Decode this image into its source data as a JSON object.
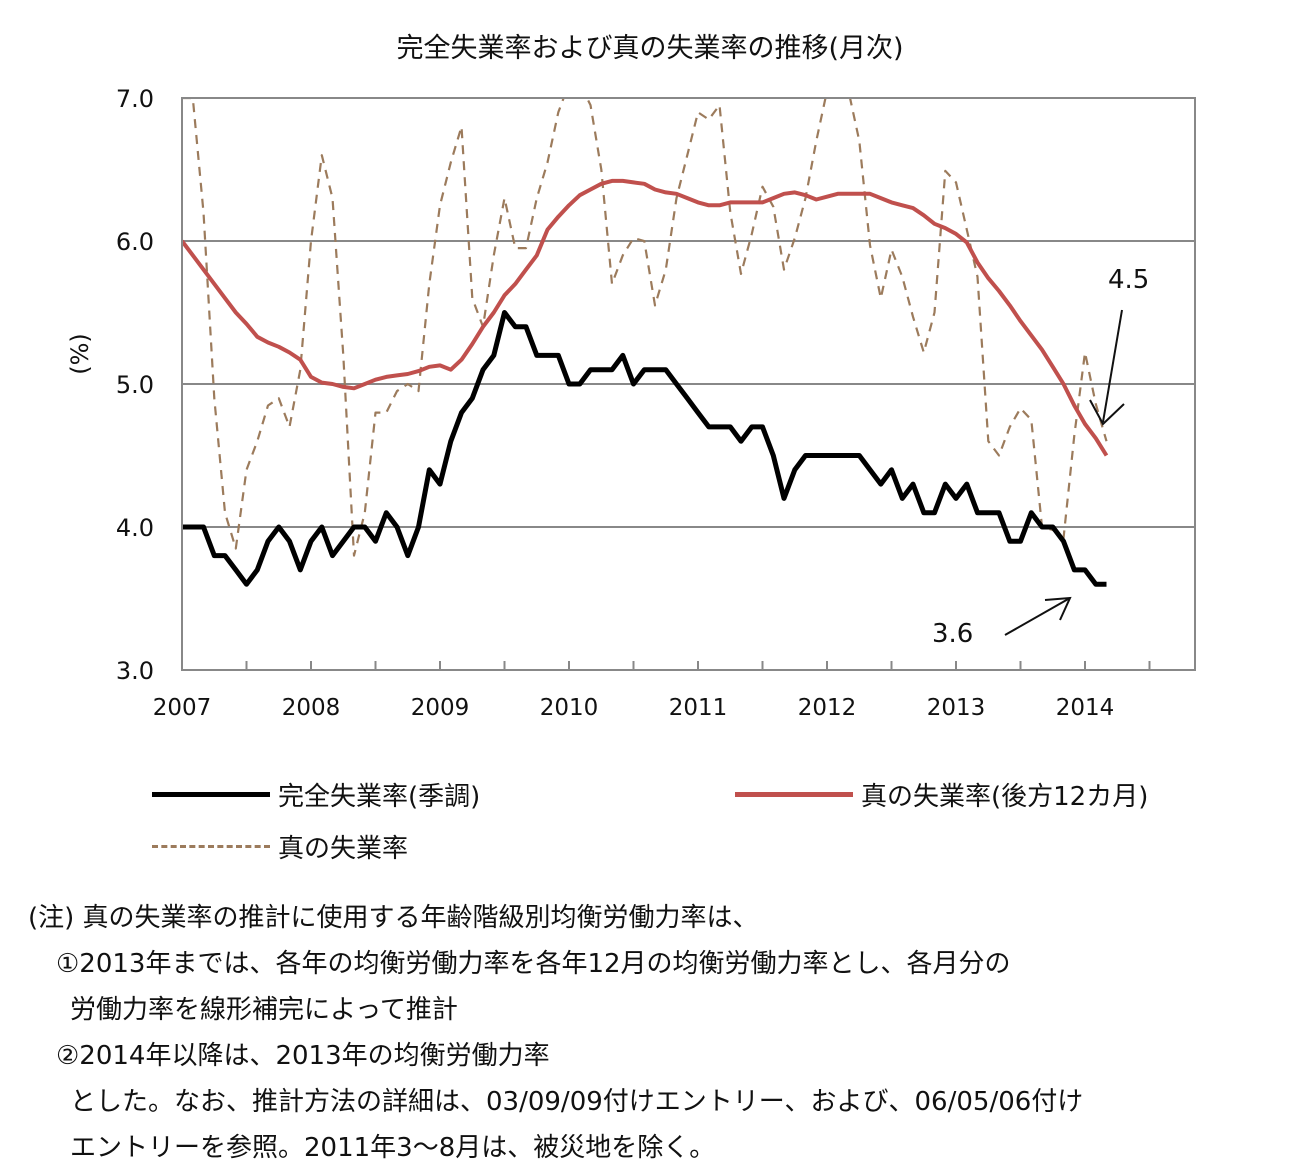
{
  "chart_data": {
    "type": "line",
    "title": "完全失業率および真の失業率の推移(月次)",
    "xlabel": "",
    "ylabel": "(%)",
    "x_start": "2007-01",
    "x_unit": "month",
    "x_ticks": [
      "2007",
      "2008",
      "2009",
      "2010",
      "2011",
      "2012",
      "2013",
      "2014"
    ],
    "ylim": [
      3.0,
      7.0
    ],
    "y_ticks": [
      "3.0",
      "4.0",
      "5.0",
      "6.0",
      "7.0"
    ],
    "grid": true,
    "legend_position": "bottom",
    "series": [
      {
        "name": "完全失業率(季調)",
        "color": "#000000",
        "style": "solid",
        "values": [
          4.0,
          4.0,
          4.0,
          3.8,
          3.8,
          3.7,
          3.6,
          3.7,
          3.9,
          4.0,
          3.9,
          3.7,
          3.9,
          4.0,
          3.8,
          3.9,
          4.0,
          4.0,
          3.9,
          4.1,
          4.0,
          3.8,
          4.0,
          4.4,
          4.3,
          4.6,
          4.8,
          4.9,
          5.1,
          5.2,
          5.5,
          5.4,
          5.4,
          5.2,
          5.2,
          5.2,
          5.0,
          5.0,
          5.1,
          5.1,
          5.1,
          5.2,
          5.0,
          5.1,
          5.1,
          5.1,
          5.0,
          4.9,
          4.8,
          4.7,
          4.7,
          4.7,
          4.6,
          4.7,
          4.7,
          4.5,
          4.2,
          4.4,
          4.5,
          4.5,
          4.5,
          4.5,
          4.5,
          4.5,
          4.4,
          4.3,
          4.4,
          4.2,
          4.3,
          4.1,
          4.1,
          4.3,
          4.2,
          4.3,
          4.1,
          4.1,
          4.1,
          3.9,
          3.9,
          4.1,
          4.0,
          4.0,
          3.9,
          3.7,
          3.7,
          3.6,
          3.6
        ]
      },
      {
        "name": "真の失業率(後方12カ月)",
        "color": "#c0504d",
        "style": "solid",
        "values": [
          6.0,
          5.9,
          5.8,
          5.7,
          5.6,
          5.5,
          5.42,
          5.33,
          5.29,
          5.26,
          5.22,
          5.17,
          5.05,
          5.01,
          5.0,
          4.98,
          4.97,
          5.0,
          5.03,
          5.05,
          5.06,
          5.07,
          5.09,
          5.12,
          5.13,
          5.1,
          5.17,
          5.28,
          5.4,
          5.5,
          5.62,
          5.7,
          5.8,
          5.9,
          6.08,
          6.17,
          6.25,
          6.32,
          6.36,
          6.4,
          6.42,
          6.42,
          6.41,
          6.4,
          6.36,
          6.34,
          6.33,
          6.3,
          6.27,
          6.25,
          6.25,
          6.27,
          6.27,
          6.27,
          6.27,
          6.3,
          6.33,
          6.34,
          6.32,
          6.29,
          6.31,
          6.33,
          6.33,
          6.33,
          6.33,
          6.3,
          6.27,
          6.25,
          6.23,
          6.18,
          6.12,
          6.09,
          6.05,
          5.99,
          5.85,
          5.74,
          5.65,
          5.55,
          5.44,
          5.34,
          5.24,
          5.12,
          5.0,
          4.85,
          4.72,
          4.62,
          4.5
        ]
      },
      {
        "name": "真の失業率",
        "color": "#9c7b5c",
        "style": "dashed",
        "values": [
          7.0,
          7.0,
          6.2,
          4.9,
          4.1,
          3.85,
          4.4,
          4.6,
          4.85,
          4.9,
          4.7,
          5.1,
          6.0,
          6.6,
          6.3,
          5.2,
          3.8,
          4.1,
          4.8,
          4.8,
          4.95,
          5.0,
          4.95,
          5.7,
          6.25,
          6.55,
          6.8,
          5.6,
          5.4,
          5.9,
          6.3,
          5.95,
          5.95,
          6.3,
          6.55,
          6.9,
          7.1,
          7.1,
          6.95,
          6.5,
          5.7,
          5.9,
          6.02,
          6.0,
          5.55,
          5.8,
          6.3,
          6.6,
          6.9,
          6.85,
          6.95,
          6.2,
          5.77,
          6.05,
          6.38,
          6.24,
          5.8,
          6.02,
          6.3,
          6.7,
          7.05,
          7.1,
          7.05,
          6.7,
          5.97,
          5.6,
          5.94,
          5.75,
          5.47,
          5.22,
          5.5,
          6.49,
          6.41,
          6.08,
          5.75,
          4.6,
          4.5,
          4.7,
          4.83,
          4.75,
          4.0,
          3.98,
          3.92,
          4.64,
          5.22,
          4.86,
          4.6
        ]
      }
    ],
    "annotations": [
      {
        "text": "4.5",
        "series": "真の失業率(後方12カ月)",
        "month_index": 86
      },
      {
        "text": "3.6",
        "series": "完全失業率(季調)",
        "month_index": 86
      }
    ]
  },
  "notes": [
    "(注) 真の失業率の推計に使用する年齢階級別均衡労働力率は、",
    "①2013年までは、各年の均衡労働力率を各年12月の均衡労働力率とし、各月分の",
    "労働力率を線形補完によって推計",
    "②2014年以降は、2013年の均衡労働力率",
    "とした。なお、推計方法の詳細は、03/09/09付けエントリー、および、06/05/06付け",
    "エントリーを参照。2011年3〜8月は、被災地を除く。"
  ]
}
